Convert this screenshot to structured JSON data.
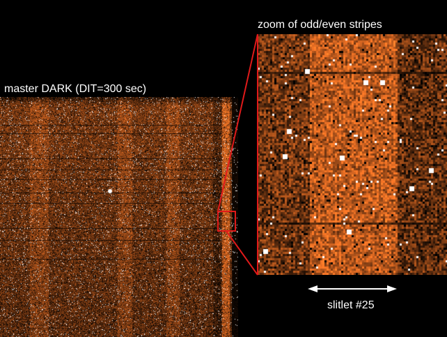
{
  "labels": {
    "left_title": "master DARK (DIT=300 sec)",
    "zoom_title": "zoom of odd/even stripes",
    "slitlet": "slitlet #25"
  },
  "colors": {
    "background": "#000000",
    "label_text": "#ffffff",
    "detector_tone": "#d97a2a",
    "highlight_box": "#e01a1a",
    "arrow": "#ffffff"
  }
}
